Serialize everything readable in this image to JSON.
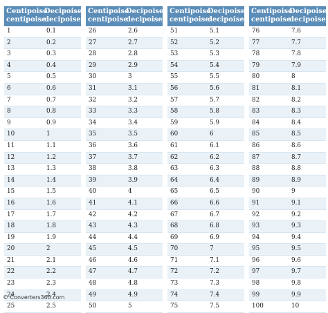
{
  "headers": {
    "col1": "Centipoise\ncentipoise",
    "col2": "Decipoise\ndecipoise"
  },
  "tables": [
    {
      "rows": [
        [
          "1",
          "0.1"
        ],
        [
          "2",
          "0.2"
        ],
        [
          "3",
          "0.3"
        ],
        [
          "4",
          "0.4"
        ],
        [
          "5",
          "0.5"
        ],
        [
          "6",
          "0.6"
        ],
        [
          "7",
          "0.7"
        ],
        [
          "8",
          "0.8"
        ],
        [
          "9",
          "0.9"
        ],
        [
          "10",
          "1"
        ],
        [
          "11",
          "1.1"
        ],
        [
          "12",
          "1.2"
        ],
        [
          "13",
          "1.3"
        ],
        [
          "14",
          "1.4"
        ],
        [
          "15",
          "1.5"
        ],
        [
          "16",
          "1.6"
        ],
        [
          "17",
          "1.7"
        ],
        [
          "18",
          "1.8"
        ],
        [
          "19",
          "1.9"
        ],
        [
          "20",
          "2"
        ],
        [
          "21",
          "2.1"
        ],
        [
          "22",
          "2.2"
        ],
        [
          "23",
          "2.3"
        ],
        [
          "24",
          "2.4"
        ],
        [
          "25",
          "2.5"
        ]
      ]
    },
    {
      "rows": [
        [
          "26",
          "2.6"
        ],
        [
          "27",
          "2.7"
        ],
        [
          "28",
          "2.8"
        ],
        [
          "29",
          "2.9"
        ],
        [
          "30",
          "3"
        ],
        [
          "31",
          "3.1"
        ],
        [
          "32",
          "3.2"
        ],
        [
          "33",
          "3.3"
        ],
        [
          "34",
          "3.4"
        ],
        [
          "35",
          "3.5"
        ],
        [
          "36",
          "3.6"
        ],
        [
          "37",
          "3.7"
        ],
        [
          "38",
          "3.8"
        ],
        [
          "39",
          "3.9"
        ],
        [
          "40",
          "4"
        ],
        [
          "41",
          "4.1"
        ],
        [
          "42",
          "4.2"
        ],
        [
          "43",
          "4.3"
        ],
        [
          "44",
          "4.4"
        ],
        [
          "45",
          "4.5"
        ],
        [
          "46",
          "4.6"
        ],
        [
          "47",
          "4.7"
        ],
        [
          "48",
          "4.8"
        ],
        [
          "49",
          "4.9"
        ],
        [
          "50",
          "5"
        ]
      ]
    },
    {
      "rows": [
        [
          "51",
          "5.1"
        ],
        [
          "52",
          "5.2"
        ],
        [
          "53",
          "5.3"
        ],
        [
          "54",
          "5.4"
        ],
        [
          "55",
          "5.5"
        ],
        [
          "56",
          "5.6"
        ],
        [
          "57",
          "5.7"
        ],
        [
          "58",
          "5.8"
        ],
        [
          "59",
          "5.9"
        ],
        [
          "60",
          "6"
        ],
        [
          "61",
          "6.1"
        ],
        [
          "62",
          "6.2"
        ],
        [
          "63",
          "6.3"
        ],
        [
          "64",
          "6.4"
        ],
        [
          "65",
          "6.5"
        ],
        [
          "66",
          "6.6"
        ],
        [
          "67",
          "6.7"
        ],
        [
          "68",
          "6.8"
        ],
        [
          "69",
          "6.9"
        ],
        [
          "70",
          "7"
        ],
        [
          "71",
          "7.1"
        ],
        [
          "72",
          "7.2"
        ],
        [
          "73",
          "7.3"
        ],
        [
          "74",
          "7.4"
        ],
        [
          "75",
          "7.5"
        ]
      ]
    },
    {
      "rows": [
        [
          "76",
          "7.6"
        ],
        [
          "77",
          "7.7"
        ],
        [
          "78",
          "7.8"
        ],
        [
          "79",
          "7.9"
        ],
        [
          "80",
          "8"
        ],
        [
          "81",
          "8.1"
        ],
        [
          "82",
          "8.2"
        ],
        [
          "83",
          "8.3"
        ],
        [
          "84",
          "8.4"
        ],
        [
          "85",
          "8.5"
        ],
        [
          "86",
          "8.6"
        ],
        [
          "87",
          "8.7"
        ],
        [
          "88",
          "8.8"
        ],
        [
          "89",
          "8.9"
        ],
        [
          "90",
          "9"
        ],
        [
          "91",
          "9.1"
        ],
        [
          "92",
          "9.2"
        ],
        [
          "93",
          "9.3"
        ],
        [
          "94",
          "9.4"
        ],
        [
          "95",
          "9.5"
        ],
        [
          "96",
          "9.6"
        ],
        [
          "97",
          "9.7"
        ],
        [
          "98",
          "9.8"
        ],
        [
          "99",
          "9.9"
        ],
        [
          "100",
          "10"
        ]
      ]
    }
  ],
  "watermark": "© Converters360.com",
  "colors": {
    "header_background": "#5b8db8",
    "header_text": "#ffffff",
    "stripe": "#eaf2f8"
  }
}
